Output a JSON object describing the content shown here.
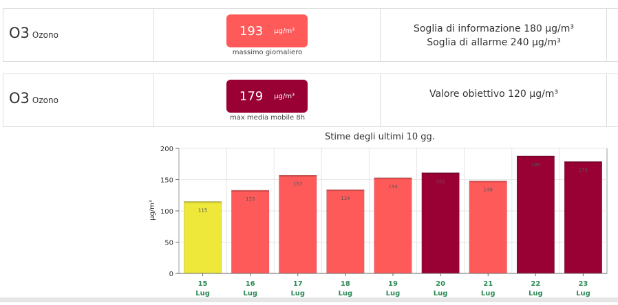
{
  "rows": [
    {
      "pollutant": "O3",
      "pollutant_name": "Ozono",
      "value": "193",
      "unit": "µg/m³",
      "caption": "massimo giornaliero",
      "badge_color": "#ff5a5a",
      "thresholds": [
        "Soglia di informazione 180 µg/m³",
        "Soglia di allarme 240 µg/m³"
      ]
    },
    {
      "pollutant": "O3",
      "pollutant_name": "Ozono",
      "value": "179",
      "unit": "µg/m³",
      "caption": "max media mobile 8h",
      "badge_color": "#990033",
      "thresholds": [
        "Valore obiettivo 120 µg/m³"
      ]
    }
  ],
  "chart_data": {
    "type": "bar",
    "title": "Stime degli ultimi 10 gg.",
    "ylabel": "µg/m³",
    "ylim": [
      0,
      200
    ],
    "yticks": [
      0,
      50,
      100,
      150,
      200
    ],
    "grid": true,
    "categories": [
      {
        "day": "15",
        "month": "Lug"
      },
      {
        "day": "16",
        "month": "Lug"
      },
      {
        "day": "17",
        "month": "Lug"
      },
      {
        "day": "18",
        "month": "Lug"
      },
      {
        "day": "19",
        "month": "Lug"
      },
      {
        "day": "20",
        "month": "Lug"
      },
      {
        "day": "21",
        "month": "Lug"
      },
      {
        "day": "22",
        "month": "Lug"
      },
      {
        "day": "23",
        "month": "Lug"
      }
    ],
    "values": [
      115,
      133,
      157,
      134,
      153,
      161,
      148,
      188,
      179
    ],
    "colors": [
      "#eee83a",
      "#ff5a5a",
      "#ff5a5a",
      "#ff5a5a",
      "#ff5a5a",
      "#990033",
      "#ff5a5a",
      "#990033",
      "#990033"
    ],
    "category_label_color": "#2e8b57"
  }
}
